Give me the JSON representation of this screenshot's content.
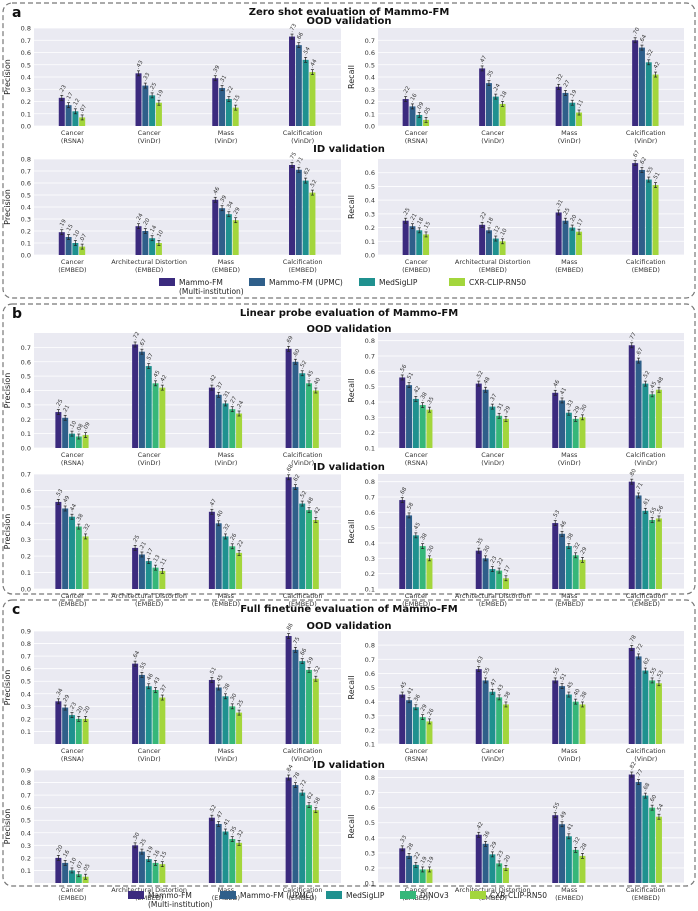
{
  "colors": {
    "background": "#ffffff",
    "plot_bg": "#eaeaf2",
    "panel_border": "#777777",
    "series": [
      "#3b2a7e",
      "#2f5f8a",
      "#1f918f",
      "#36b779",
      "#a3d63c"
    ]
  },
  "panels": [
    {
      "letter": "a",
      "title": "Zero shot evaluation of Mammo-FM",
      "legend_series": 4
    },
    {
      "letter": "b",
      "title": "Linear probe evaluation of Mammo-FM",
      "legend_series": 0
    },
    {
      "letter": "c",
      "title": "Full finetune evaluation of Mammo-FM",
      "legend_series": 5
    }
  ],
  "sections": [
    "OOD validation",
    "ID validation"
  ],
  "series_names": [
    "Mammo-FM\n(Multi-institution)",
    "Mammo-FM (UPMC)",
    "MedSigLIP",
    "DINOv3",
    "CXR-CLIP-RN50"
  ],
  "ood_categories": [
    "Cancer\n(RSNA)",
    "Cancer\n(VinDr)",
    "Mass\n(VinDr)",
    "Calcification\n(VinDr)"
  ],
  "ood_categories_recall_a": [
    "Cancer\n(RSNA)",
    "Cancer\n(VinDr)",
    "Mass\n(VinDr)",
    "Calcification\n(VinDr)"
  ],
  "id_categories": [
    "Cancer\n(EMBED)",
    "Architectural Distortion\n(EMBED)",
    "Mass\n(EMBED)",
    "Calcification\n(EMBED)"
  ],
  "chart_data": [
    {
      "type": "bar",
      "panel": "a",
      "section": "OOD validation",
      "ylabel": "Precision",
      "ylim": [
        0,
        0.8
      ],
      "yticks": [
        0,
        0.1,
        0.2,
        0.3,
        0.4,
        0.5,
        0.6,
        0.7,
        0.8
      ],
      "categories_key": "ood",
      "series": [
        {
          "index": 0,
          "values": [
            0.23,
            0.43,
            0.39,
            0.73
          ]
        },
        {
          "index": 1,
          "values": [
            0.17,
            0.33,
            0.31,
            0.66
          ]
        },
        {
          "index": 2,
          "values": [
            0.12,
            0.25,
            0.22,
            0.54
          ]
        },
        {
          "index": 4,
          "values": [
            0.07,
            0.19,
            0.15,
            0.44
          ]
        }
      ]
    },
    {
      "type": "bar",
      "panel": "a",
      "section": "OOD validation",
      "ylabel": "Recall",
      "ylim": [
        0,
        0.8
      ],
      "yticks": [
        0,
        0.1,
        0.2,
        0.3,
        0.4,
        0.5,
        0.6,
        0.7
      ],
      "categories_key": "ood",
      "series": [
        {
          "index": 0,
          "values": [
            0.22,
            0.47,
            0.32,
            0.7
          ]
        },
        {
          "index": 1,
          "values": [
            0.16,
            0.35,
            0.27,
            0.64
          ]
        },
        {
          "index": 2,
          "values": [
            0.09,
            0.24,
            0.19,
            0.52
          ]
        },
        {
          "index": 4,
          "values": [
            0.05,
            0.18,
            0.11,
            0.42
          ]
        }
      ]
    },
    {
      "type": "bar",
      "panel": "a",
      "section": "ID validation",
      "ylabel": "Precision",
      "ylim": [
        0,
        0.8
      ],
      "yticks": [
        0,
        0.1,
        0.2,
        0.3,
        0.4,
        0.5,
        0.6,
        0.7,
        0.8
      ],
      "categories_key": "id",
      "series": [
        {
          "index": 0,
          "values": [
            0.19,
            0.24,
            0.46,
            0.75
          ]
        },
        {
          "index": 1,
          "values": [
            0.15,
            0.2,
            0.39,
            0.71
          ]
        },
        {
          "index": 2,
          "values": [
            0.1,
            0.14,
            0.34,
            0.62
          ]
        },
        {
          "index": 4,
          "values": [
            0.07,
            0.1,
            0.29,
            0.52
          ]
        }
      ]
    },
    {
      "type": "bar",
      "panel": "a",
      "section": "ID validation",
      "ylabel": "Recall",
      "ylim": [
        0,
        0.7
      ],
      "yticks": [
        0,
        0.1,
        0.2,
        0.3,
        0.4,
        0.5,
        0.6
      ],
      "categories_key": "id",
      "series": [
        {
          "index": 0,
          "values": [
            0.25,
            0.22,
            0.31,
            0.67
          ]
        },
        {
          "index": 1,
          "values": [
            0.21,
            0.18,
            0.25,
            0.62
          ]
        },
        {
          "index": 2,
          "values": [
            0.18,
            0.12,
            0.2,
            0.55
          ]
        },
        {
          "index": 4,
          "values": [
            0.15,
            0.1,
            0.17,
            0.51
          ]
        }
      ]
    },
    {
      "type": "bar",
      "panel": "b",
      "section": "OOD validation",
      "ylabel": "Precision",
      "ylim": [
        0,
        0.8
      ],
      "yticks": [
        0,
        0.1,
        0.2,
        0.3,
        0.4,
        0.5,
        0.6,
        0.7
      ],
      "categories_key": "ood",
      "series": [
        {
          "index": 0,
          "values": [
            0.25,
            0.72,
            0.42,
            0.69
          ]
        },
        {
          "index": 1,
          "values": [
            0.21,
            0.67,
            0.37,
            0.6
          ]
        },
        {
          "index": 2,
          "values": [
            0.1,
            0.57,
            0.31,
            0.52
          ]
        },
        {
          "index": 3,
          "values": [
            0.08,
            0.45,
            0.27,
            0.45
          ]
        },
        {
          "index": 4,
          "values": [
            0.09,
            0.42,
            0.24,
            0.4
          ]
        }
      ]
    },
    {
      "type": "bar",
      "panel": "b",
      "section": "OOD validation",
      "ylabel": "Recall",
      "ylim": [
        0.1,
        0.85
      ],
      "yticks": [
        0.1,
        0.2,
        0.3,
        0.4,
        0.5,
        0.6,
        0.7,
        0.8
      ],
      "categories_key": "ood",
      "series": [
        {
          "index": 0,
          "values": [
            0.56,
            0.52,
            0.46,
            0.77
          ]
        },
        {
          "index": 1,
          "values": [
            0.51,
            0.48,
            0.41,
            0.67
          ]
        },
        {
          "index": 2,
          "values": [
            0.42,
            0.37,
            0.33,
            0.52
          ]
        },
        {
          "index": 3,
          "values": [
            0.38,
            0.31,
            0.29,
            0.45
          ]
        },
        {
          "index": 4,
          "values": [
            0.35,
            0.29,
            0.3,
            0.48
          ]
        }
      ]
    },
    {
      "type": "bar",
      "panel": "b",
      "section": "ID validation",
      "ylabel": "Precision",
      "ylim": [
        0,
        0.7
      ],
      "yticks": [
        0,
        0.1,
        0.2,
        0.3,
        0.4,
        0.5,
        0.6,
        0.7
      ],
      "categories_key": "id",
      "series": [
        {
          "index": 0,
          "values": [
            0.53,
            0.25,
            0.47,
            0.68
          ]
        },
        {
          "index": 1,
          "values": [
            0.49,
            0.21,
            0.4,
            0.62
          ]
        },
        {
          "index": 2,
          "values": [
            0.44,
            0.17,
            0.32,
            0.52
          ]
        },
        {
          "index": 3,
          "values": [
            0.38,
            0.13,
            0.26,
            0.48
          ]
        },
        {
          "index": 4,
          "values": [
            0.32,
            0.11,
            0.22,
            0.42
          ]
        }
      ]
    },
    {
      "type": "bar",
      "panel": "b",
      "section": "ID validation",
      "ylabel": "Recall",
      "ylim": [
        0.1,
        0.85
      ],
      "yticks": [
        0.1,
        0.2,
        0.3,
        0.4,
        0.5,
        0.6,
        0.7,
        0.8
      ],
      "categories_key": "id",
      "series": [
        {
          "index": 0,
          "values": [
            0.68,
            0.35,
            0.53,
            0.8
          ]
        },
        {
          "index": 1,
          "values": [
            0.58,
            0.3,
            0.46,
            0.71
          ]
        },
        {
          "index": 2,
          "values": [
            0.45,
            0.23,
            0.38,
            0.61
          ]
        },
        {
          "index": 3,
          "values": [
            0.38,
            0.22,
            0.32,
            0.55
          ]
        },
        {
          "index": 4,
          "values": [
            0.3,
            0.17,
            0.29,
            0.56
          ]
        }
      ]
    },
    {
      "type": "bar",
      "panel": "c",
      "section": "OOD validation",
      "ylabel": "Precision",
      "ylim": [
        0,
        0.9
      ],
      "yticks": [
        0.1,
        0.2,
        0.3,
        0.4,
        0.5,
        0.6,
        0.7,
        0.8,
        0.9
      ],
      "categories_key": "ood",
      "series": [
        {
          "index": 0,
          "values": [
            0.34,
            0.64,
            0.51,
            0.86
          ]
        },
        {
          "index": 1,
          "values": [
            0.29,
            0.55,
            0.45,
            0.75
          ]
        },
        {
          "index": 2,
          "values": [
            0.23,
            0.46,
            0.38,
            0.66
          ]
        },
        {
          "index": 3,
          "values": [
            0.2,
            0.43,
            0.3,
            0.59
          ]
        },
        {
          "index": 4,
          "values": [
            0.2,
            0.37,
            0.25,
            0.52
          ]
        }
      ]
    },
    {
      "type": "bar",
      "panel": "c",
      "section": "OOD validation",
      "ylabel": "Recall",
      "ylim": [
        0.1,
        0.9
      ],
      "yticks": [
        0.1,
        0.2,
        0.3,
        0.4,
        0.5,
        0.6,
        0.7,
        0.8
      ],
      "categories_key": "ood",
      "series": [
        {
          "index": 0,
          "values": [
            0.45,
            0.63,
            0.55,
            0.78
          ]
        },
        {
          "index": 1,
          "values": [
            0.41,
            0.55,
            0.51,
            0.72
          ]
        },
        {
          "index": 2,
          "values": [
            0.36,
            0.47,
            0.45,
            0.62
          ]
        },
        {
          "index": 3,
          "values": [
            0.29,
            0.43,
            0.4,
            0.55
          ]
        },
        {
          "index": 4,
          "values": [
            0.26,
            0.38,
            0.38,
            0.53
          ]
        }
      ]
    },
    {
      "type": "bar",
      "panel": "c",
      "section": "ID validation",
      "ylabel": "Precision",
      "ylim": [
        0,
        0.9
      ],
      "yticks": [
        0.1,
        0.2,
        0.3,
        0.4,
        0.5,
        0.6,
        0.7,
        0.8,
        0.9
      ],
      "categories_key": "id",
      "series": [
        {
          "index": 0,
          "values": [
            0.2,
            0.3,
            0.52,
            0.84
          ]
        },
        {
          "index": 1,
          "values": [
            0.16,
            0.25,
            0.47,
            0.78
          ]
        },
        {
          "index": 2,
          "values": [
            0.1,
            0.19,
            0.41,
            0.72
          ]
        },
        {
          "index": 3,
          "values": [
            0.07,
            0.16,
            0.35,
            0.62
          ]
        },
        {
          "index": 4,
          "values": [
            0.05,
            0.15,
            0.32,
            0.58
          ]
        }
      ]
    },
    {
      "type": "bar",
      "panel": "c",
      "section": "ID validation",
      "ylabel": "Recall",
      "ylim": [
        0.1,
        0.85
      ],
      "yticks": [
        0.1,
        0.2,
        0.3,
        0.4,
        0.5,
        0.6,
        0.7,
        0.8
      ],
      "categories_key": "id",
      "series": [
        {
          "index": 0,
          "values": [
            0.33,
            0.42,
            0.55,
            0.82
          ]
        },
        {
          "index": 1,
          "values": [
            0.28,
            0.36,
            0.49,
            0.77
          ]
        },
        {
          "index": 2,
          "values": [
            0.22,
            0.29,
            0.41,
            0.68
          ]
        },
        {
          "index": 3,
          "values": [
            0.19,
            0.23,
            0.32,
            0.6
          ]
        },
        {
          "index": 4,
          "values": [
            0.19,
            0.2,
            0.28,
            0.54
          ]
        }
      ]
    }
  ]
}
